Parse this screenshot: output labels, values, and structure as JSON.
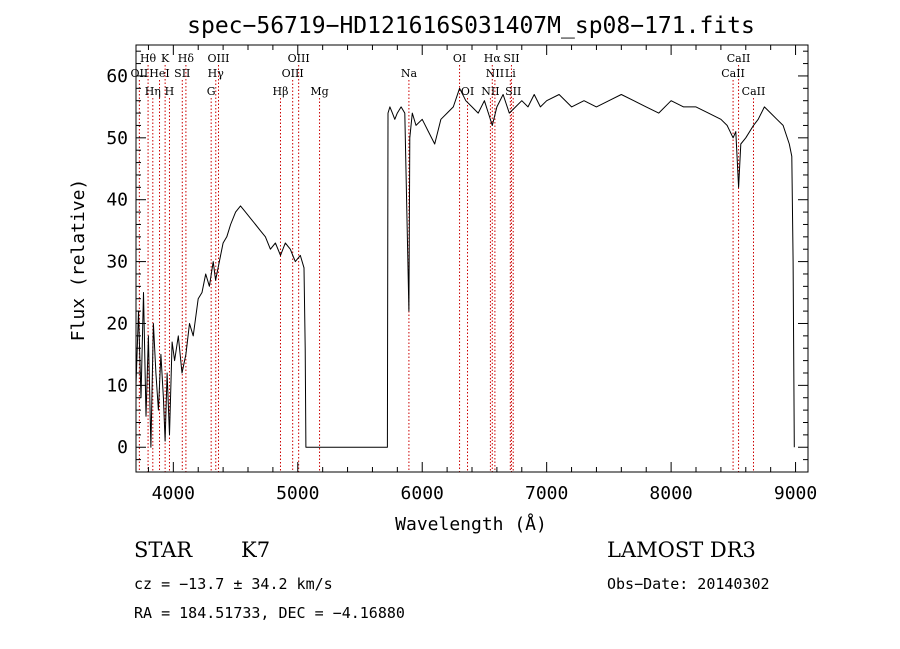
{
  "chart_data": {
    "type": "line",
    "title": "spec−56719−HD121616S031407M_sp08−171.fits",
    "xlabel": "Wavelength (Å)",
    "ylabel": "Flux (relative)",
    "xlim": [
      3700,
      9100
    ],
    "ylim": [
      -4,
      65
    ],
    "xticks": [
      {
        "value": 4000,
        "label": "4000"
      },
      {
        "value": 5000,
        "label": "5000"
      },
      {
        "value": 6000,
        "label": "6000"
      },
      {
        "value": 7000,
        "label": "7000"
      },
      {
        "value": 8000,
        "label": "8000"
      },
      {
        "value": 9000,
        "label": "9000"
      }
    ],
    "yticks": [
      {
        "value": 0,
        "label": "0"
      },
      {
        "value": 10,
        "label": "10"
      },
      {
        "value": 20,
        "label": "20"
      },
      {
        "value": 30,
        "label": "30"
      },
      {
        "value": 40,
        "label": "40"
      },
      {
        "value": 50,
        "label": "50"
      },
      {
        "value": 60,
        "label": "60"
      }
    ],
    "series": [
      {
        "name": "flux",
        "x": [
          3700,
          3720,
          3740,
          3760,
          3780,
          3800,
          3820,
          3840,
          3860,
          3880,
          3900,
          3920,
          3934,
          3950,
          3969,
          3990,
          4010,
          4040,
          4070,
          4101,
          4130,
          4160,
          4200,
          4230,
          4260,
          4290,
          4320,
          4340,
          4360,
          4380,
          4400,
          4430,
          4460,
          4500,
          4540,
          4580,
          4620,
          4660,
          4700,
          4740,
          4780,
          4820,
          4861,
          4900,
          4940,
          4980,
          5020,
          5050,
          5060,
          5065,
          5070,
          5100,
          5400,
          5720,
          5725,
          5740,
          5760,
          5780,
          5800,
          5830,
          5860,
          5893,
          5900,
          5920,
          5950,
          6000,
          6050,
          6100,
          6150,
          6200,
          6250,
          6300,
          6350,
          6400,
          6450,
          6500,
          6563,
          6600,
          6650,
          6700,
          6750,
          6800,
          6850,
          6900,
          6950,
          7000,
          7100,
          7200,
          7300,
          7400,
          7500,
          7600,
          7700,
          7800,
          7900,
          8000,
          8100,
          8200,
          8300,
          8400,
          8450,
          8498,
          8520,
          8542,
          8560,
          8600,
          8662,
          8700,
          8750,
          8800,
          8850,
          8900,
          8950,
          8970,
          8980,
          8990
        ],
        "y": [
          10,
          22,
          8,
          25,
          5,
          18,
          0,
          20,
          12,
          6,
          15,
          8,
          1,
          12,
          2,
          17,
          14,
          18,
          12,
          15,
          20,
          18,
          24,
          25,
          28,
          26,
          30,
          27,
          29,
          31,
          33,
          34,
          36,
          38,
          39,
          38,
          37,
          36,
          35,
          34,
          32,
          33,
          31,
          33,
          32,
          30,
          31,
          29,
          16,
          0,
          0,
          0,
          0,
          0,
          54,
          55,
          54,
          53,
          54,
          55,
          54,
          22,
          50,
          54,
          52,
          53,
          51,
          49,
          53,
          54,
          55,
          58,
          56,
          55,
          54,
          56,
          52,
          55,
          57,
          54,
          55,
          56,
          55,
          57,
          55,
          56,
          57,
          55,
          56,
          55,
          56,
          57,
          56,
          55,
          54,
          56,
          55,
          55,
          54,
          53,
          52,
          50,
          51,
          42,
          49,
          50,
          52,
          53,
          55,
          54,
          53,
          52,
          49,
          47,
          30,
          0
        ]
      }
    ],
    "spectral_lines": [
      {
        "label": "Hθ",
        "wavelength": 3797,
        "row": 1
      },
      {
        "label": "OII",
        "wavelength": 3727,
        "row": 2
      },
      {
        "label": "Hη",
        "wavelength": 3835,
        "row": 3
      },
      {
        "label": "HeI",
        "wavelength": 3889,
        "row": 2
      },
      {
        "label": "K",
        "wavelength": 3934,
        "row": 1
      },
      {
        "label": "H",
        "wavelength": 3969,
        "row": 3
      },
      {
        "label": "SII",
        "wavelength": 4072,
        "row": 2
      },
      {
        "label": "Hδ",
        "wavelength": 4101,
        "row": 1
      },
      {
        "label": "OIII",
        "wavelength": 4363,
        "row": 1
      },
      {
        "label": "Hγ",
        "wavelength": 4341,
        "row": 2
      },
      {
        "label": "G",
        "wavelength": 4304,
        "row": 3
      },
      {
        "label": "Hβ",
        "wavelength": 4861,
        "row": 3
      },
      {
        "label": "OIII",
        "wavelength": 5007,
        "row": 1
      },
      {
        "label": "OIII",
        "wavelength": 4959,
        "row": 2
      },
      {
        "label": "Mg",
        "wavelength": 5175,
        "row": 3
      },
      {
        "label": "Na",
        "wavelength": 5893,
        "row": 2
      },
      {
        "label": "OI",
        "wavelength": 6300,
        "row": 1
      },
      {
        "label": "OI",
        "wavelength": 6364,
        "row": 3
      },
      {
        "label": "Hα",
        "wavelength": 6563,
        "row": 1
      },
      {
        "label": "SII",
        "wavelength": 6717,
        "row": 1
      },
      {
        "label": "NII",
        "wavelength": 6584,
        "row": 2
      },
      {
        "label": "Li",
        "wavelength": 6708,
        "row": 2
      },
      {
        "label": "NII",
        "wavelength": 6548,
        "row": 3
      },
      {
        "label": "SII",
        "wavelength": 6731,
        "row": 3
      },
      {
        "label": "CaII",
        "wavelength": 8542,
        "row": 1
      },
      {
        "label": "CaII",
        "wavelength": 8498,
        "row": 2
      },
      {
        "label": "CaII",
        "wavelength": 8662,
        "row": 3
      }
    ]
  },
  "info": {
    "object_class": "STAR",
    "subclass": "K7",
    "survey": "LAMOST DR3",
    "redshift": "cz = −13.7 ± 34.2 km/s",
    "obs_date": "Obs−Date: 20140302",
    "coords": "RA = 184.51733, DEC =  −4.16880"
  },
  "colors": {
    "axes": "#000000",
    "spectrum": "#000000",
    "line_markers": "#cc0000"
  }
}
